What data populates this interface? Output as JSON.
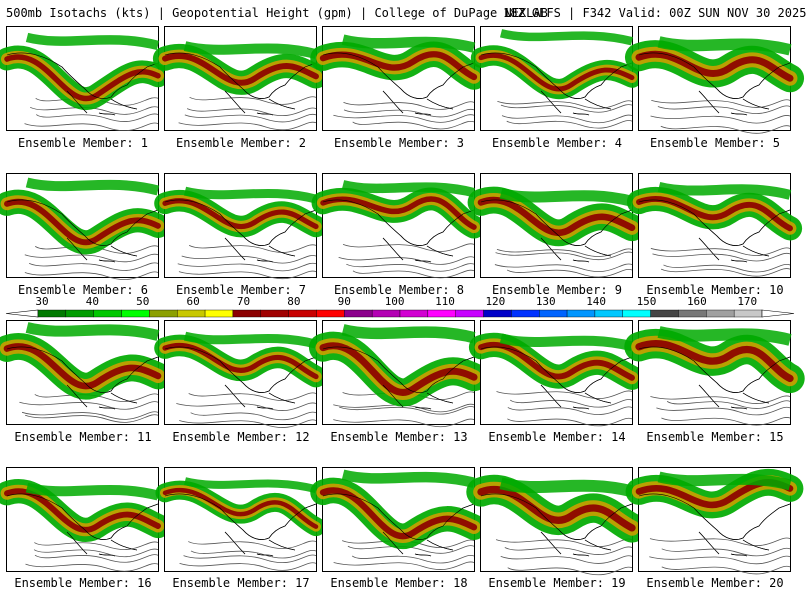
{
  "header": {
    "title_left": "500mb Isotachs (kts) | Geopotential Height (gpm) | College of DuPage NEXLAB",
    "title_right": "18Z GEFS | F342 Valid: 00Z SUN NOV 30 2025"
  },
  "members": [
    {
      "label": "Ensemble Member: 1",
      "jet_strength": 0.65
    },
    {
      "label": "Ensemble Member: 2",
      "jet_strength": 0.7
    },
    {
      "label": "Ensemble Member: 3",
      "jet_strength": 0.75
    },
    {
      "label": "Ensemble Member: 4",
      "jet_strength": 0.55
    },
    {
      "label": "Ensemble Member: 5",
      "jet_strength": 0.85
    },
    {
      "label": "Ensemble Member: 6",
      "jet_strength": 0.7
    },
    {
      "label": "Ensemble Member: 7",
      "jet_strength": 0.6
    },
    {
      "label": "Ensemble Member: 8",
      "jet_strength": 0.65
    },
    {
      "label": "Ensemble Member: 9",
      "jet_strength": 0.8
    },
    {
      "label": "Ensemble Member: 10",
      "jet_strength": 0.7
    },
    {
      "label": "Ensemble Member: 11",
      "jet_strength": 0.8
    },
    {
      "label": "Ensemble Member: 12",
      "jet_strength": 0.6
    },
    {
      "label": "Ensemble Member: 13",
      "jet_strength": 0.85
    },
    {
      "label": "Ensemble Member: 14",
      "jet_strength": 0.7
    },
    {
      "label": "Ensemble Member: 15",
      "jet_strength": 0.9
    },
    {
      "label": "Ensemble Member: 16",
      "jet_strength": 0.7
    },
    {
      "label": "Ensemble Member: 17",
      "jet_strength": 0.5
    },
    {
      "label": "Ensemble Member: 18",
      "jet_strength": 0.75
    },
    {
      "label": "Ensemble Member: 19",
      "jet_strength": 0.9
    },
    {
      "label": "Ensemble Member: 20",
      "jet_strength": 0.8
    }
  ],
  "colorbar": {
    "tick_labels": [
      "30",
      "40",
      "50",
      "60",
      "70",
      "80",
      "90",
      "100",
      "110",
      "120",
      "130",
      "140",
      "150",
      "160",
      "170"
    ],
    "colors": [
      "#007a00",
      "#009c00",
      "#00c800",
      "#00ff00",
      "#8ca000",
      "#c8c800",
      "#ffff00",
      "#8c0000",
      "#a00000",
      "#c80000",
      "#ff0000",
      "#8c008c",
      "#b400b4",
      "#d200d2",
      "#ff00ff",
      "#c800ff",
      "#0000c8",
      "#0032ff",
      "#0064ff",
      "#0096ff",
      "#00c8ff",
      "#00ffff",
      "#464646",
      "#787878",
      "#a0a0a0",
      "#c8c8c8"
    ]
  },
  "map": {
    "land_color": "#ffffff",
    "coast_color": "#000000",
    "height_contour_color": "#555555",
    "jet_weak": "#00aa00",
    "jet_mid": "#c8a000",
    "jet_core": "#8c0000"
  }
}
